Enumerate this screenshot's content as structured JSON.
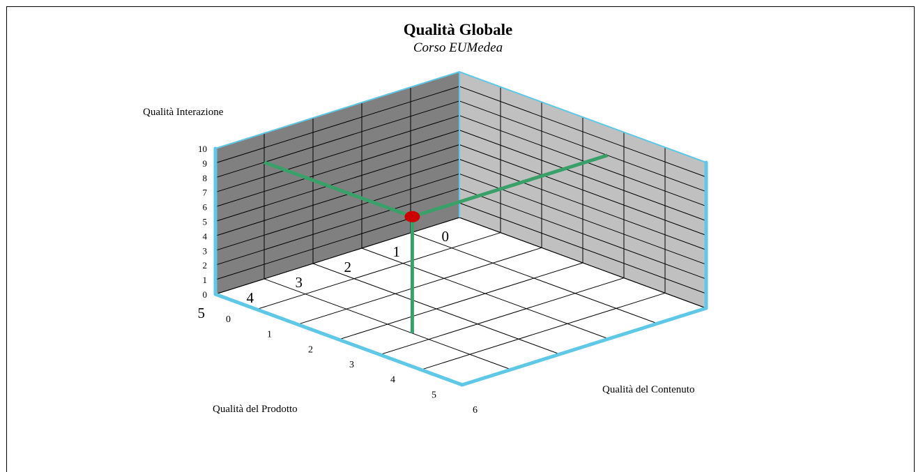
{
  "chart_data": {
    "type": "scatter",
    "title": "Qualità Globale",
    "subtitle": "Corso EUMedea",
    "axes": {
      "x": {
        "label": "Qualità del Prodotto",
        "range": [
          0,
          5
        ],
        "ticks": [
          "0",
          "1",
          "2",
          "3",
          "4",
          "5"
        ]
      },
      "y": {
        "label": "Qualità del Contenuto",
        "range": [
          0,
          6
        ],
        "ticks": [
          "0",
          "1",
          "2",
          "3",
          "4",
          "5",
          "6"
        ]
      },
      "z": {
        "label": "Qualità Interazione",
        "range": [
          0,
          10
        ],
        "ticks": [
          "0",
          "1",
          "2",
          "3",
          "4",
          "5",
          "6",
          "7",
          "8",
          "9",
          "10"
        ]
      }
    },
    "points": [
      {
        "x": 4,
        "y": 3.6,
        "z": 8
      }
    ],
    "colors": {
      "left_wall": "#808080",
      "right_wall": "#c0c0c0",
      "floor": "#ffffff",
      "edge": "#5ec8e6",
      "drop_lines": "#3aa06a",
      "point": "#cc0000"
    },
    "grid": true
  }
}
